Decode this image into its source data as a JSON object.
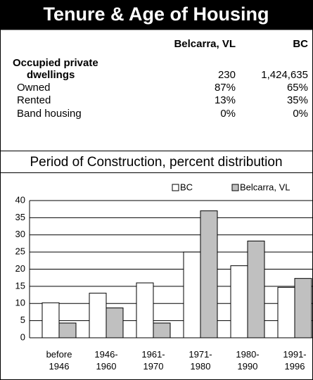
{
  "header": {
    "title": "Tenure & Age of Housing"
  },
  "table": {
    "columns": [
      "Belcarra, VL",
      "BC"
    ],
    "rows": [
      [
        "Occupied private"
      ],
      [
        "dwellings",
        "230",
        "1,424,635"
      ],
      [
        "Owned",
        "87%",
        "65%"
      ],
      [
        "Rented",
        "13%",
        "35%"
      ],
      [
        "Band housing",
        "0%",
        "0%"
      ]
    ]
  },
  "chart_data": {
    "type": "bar",
    "title": "Period of Construction, percent distribution",
    "categories": [
      "before 1946",
      "1946- 1960",
      "1961- 1970",
      "1971- 1980",
      "1980- 1990",
      "1991- 1996"
    ],
    "series": [
      {
        "name": "BC",
        "color": "#ffffff",
        "values": [
          10.2,
          13,
          16,
          25,
          21,
          14.7
        ]
      },
      {
        "name": "Belcarra, VL",
        "color": "#c0c0c0",
        "values": [
          4.3,
          8.7,
          4.3,
          37,
          28.2,
          17.3
        ]
      }
    ],
    "ylim": [
      0,
      40
    ],
    "yticks": [
      0,
      5,
      10,
      15,
      20,
      25,
      30,
      35,
      40
    ],
    "grid": true,
    "legend": "top"
  }
}
